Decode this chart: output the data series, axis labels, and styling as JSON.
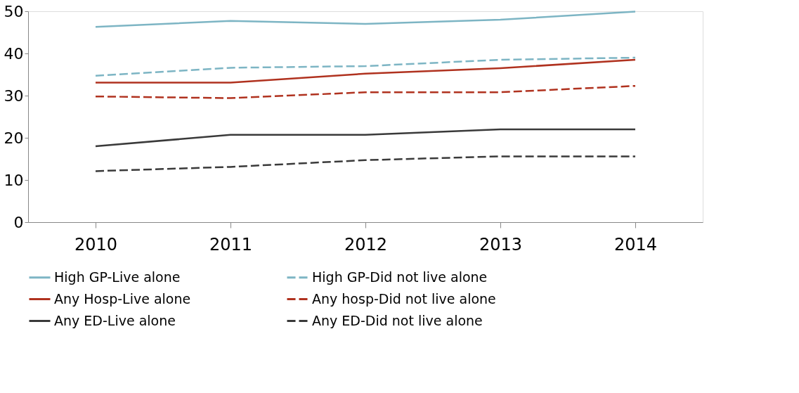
{
  "chart_data": {
    "type": "line",
    "categories": [
      "2010",
      "2011",
      "2012",
      "2013",
      "2014"
    ],
    "ylim": [
      0,
      50
    ],
    "yticks": [
      0,
      10,
      20,
      30,
      40,
      50
    ],
    "grid": false,
    "legend": "bottom",
    "marker": "none",
    "series": [
      {
        "name": "High GP-Live alone",
        "color": "#7db5c4",
        "line_style": "solid",
        "values": [
          46.3,
          47.7,
          47.0,
          48.0,
          49.9
        ]
      },
      {
        "name": "High GP-Did not live alone",
        "color": "#7db5c4",
        "line_style": "dashed",
        "values": [
          34.7,
          36.6,
          37.0,
          38.5,
          39.0
        ]
      },
      {
        "name": "Any Hosp-Live alone",
        "color": "#b0321f",
        "line_style": "solid",
        "values": [
          33.1,
          33.1,
          35.2,
          36.5,
          38.5
        ]
      },
      {
        "name": "Any hosp-Did not live alone",
        "color": "#b0321f",
        "line_style": "dashed",
        "values": [
          29.8,
          29.4,
          30.8,
          30.8,
          32.3
        ]
      },
      {
        "name": "Any ED-Live alone",
        "color": "#3a3a3a",
        "line_style": "solid",
        "values": [
          18.0,
          20.7,
          20.7,
          22.0,
          22.0
        ]
      },
      {
        "name": "Any ED-Did not live alone",
        "color": "#3a3a3a",
        "line_style": "dashed",
        "values": [
          12.1,
          13.1,
          14.7,
          15.6,
          15.6
        ]
      }
    ]
  }
}
